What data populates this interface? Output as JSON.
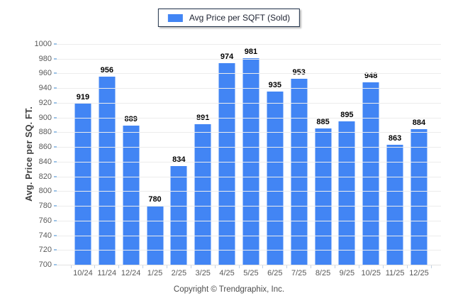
{
  "chart": {
    "legend_label": "Avg Price per SQFT (Sold)",
    "y_axis_title": "Avg. Price per SQ. FT.",
    "copyright": "Copyright © Trendgraphix, Inc.",
    "colors": {
      "bar": "#4285F4",
      "grid": "#ECECEC",
      "baseline": "#E2E2E2",
      "axis_tick": "#9DC3E6",
      "legend_border": "#1E2F47"
    }
  },
  "chart_data": {
    "type": "bar",
    "title": "",
    "legend": [
      "Avg Price per SQFT (Sold)"
    ],
    "legend_position": "top-center",
    "categories": [
      "10/24",
      "11/24",
      "12/24",
      "1/25",
      "2/25",
      "3/25",
      "4/25",
      "5/25",
      "6/25",
      "7/25",
      "8/25",
      "9/25",
      "10/25",
      "11/25",
      "12/25"
    ],
    "values": [
      919,
      956,
      889,
      780,
      834,
      891,
      974,
      981,
      935,
      953,
      885,
      895,
      948,
      863,
      884
    ],
    "xlabel": "",
    "ylabel": "Avg. Price per SQ. FT.",
    "ylim": [
      700,
      1000
    ],
    "ytick_step": 20,
    "yticks": [
      700,
      720,
      740,
      760,
      780,
      800,
      820,
      840,
      860,
      880,
      900,
      920,
      940,
      960,
      980,
      1000
    ],
    "grid": true
  }
}
